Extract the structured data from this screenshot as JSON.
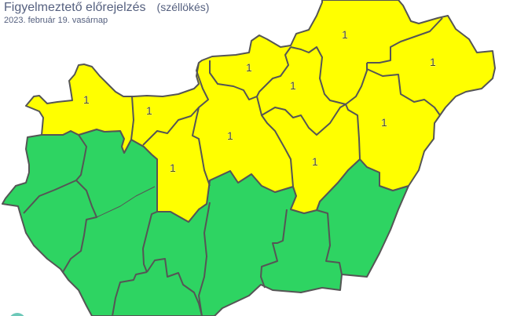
{
  "header": {
    "title": "Figyelmeztető előrejelzés",
    "subtitle": "(széllökés)",
    "date": "2023. február 19. vasárnap"
  },
  "colors": {
    "level_0": "#2ed462",
    "level_1": "#ffff00",
    "border": "#555555"
  },
  "map": {
    "warning_labels": [
      "1",
      "1",
      "1",
      "1",
      "1",
      "1",
      "1",
      "1",
      "1",
      "1"
    ]
  }
}
